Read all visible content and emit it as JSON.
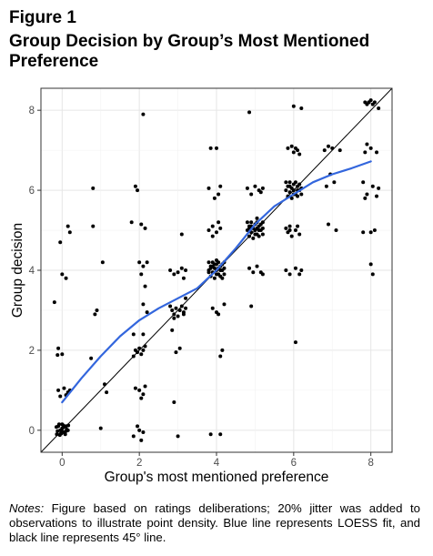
{
  "figure": {
    "label": "Figure 1",
    "title": "Group Decision by Group’s Most Mentioned Preference"
  },
  "notes": {
    "lead": "Notes:",
    "text": " Figure based on ratings deliberations; 20% jitter was added to observations to illustrate point density. Blue line represents LOESS fit, and black line represents 45° line."
  },
  "colors": {
    "loess": "#3366dd",
    "diagonal": "#000000",
    "points": "#000000",
    "grid": "#e6e6e6",
    "panel_border": "#333333"
  },
  "chart_data": {
    "type": "scatter",
    "xlabel": "Group's most mentioned preference",
    "ylabel": "Group decision",
    "xlim": [
      -0.55,
      8.55
    ],
    "ylim": [
      -0.55,
      8.55
    ],
    "xticks": [
      0,
      2,
      4,
      6,
      8
    ],
    "yticks": [
      0,
      2,
      4,
      6,
      8
    ],
    "grid": true,
    "series": [
      {
        "kind": "points",
        "points": [
          [
            -0.1,
            0.1
          ],
          [
            -0.05,
            0.0
          ],
          [
            0.0,
            0.05
          ],
          [
            0.05,
            -0.05
          ],
          [
            0.1,
            0.1
          ],
          [
            -0.12,
            -0.02
          ],
          [
            0.12,
            0.02
          ],
          [
            0.0,
            0.15
          ],
          [
            -0.06,
            -0.12
          ],
          [
            0.08,
            -0.1
          ],
          [
            0.15,
            0.0
          ],
          [
            -0.15,
            0.08
          ],
          [
            0.03,
            0.12
          ],
          [
            -0.02,
            -0.08
          ],
          [
            0.1,
            -0.02
          ],
          [
            -0.08,
            0.15
          ],
          [
            0.05,
            0.08
          ],
          [
            -0.14,
            -0.1
          ],
          [
            0.16,
            0.12
          ],
          [
            0.0,
            -0.03
          ],
          [
            -0.1,
            1.0
          ],
          [
            0.05,
            1.05
          ],
          [
            0.15,
            0.95
          ],
          [
            0.2,
            1.0
          ],
          [
            -0.05,
            0.85
          ],
          [
            -0.2,
            3.2
          ],
          [
            0.0,
            3.9
          ],
          [
            -0.1,
            2.05
          ],
          [
            0.0,
            1.9
          ],
          [
            -0.12,
            1.88
          ],
          [
            0.1,
            3.8
          ],
          [
            0.15,
            5.1
          ],
          [
            0.2,
            4.95
          ],
          [
            -0.05,
            4.7
          ],
          [
            0.1,
            0.88
          ],
          [
            0.8,
            6.05
          ],
          [
            0.8,
            5.1
          ],
          [
            0.9,
            3.0
          ],
          [
            0.85,
            2.9
          ],
          [
            0.75,
            1.8
          ],
          [
            1.05,
            4.2
          ],
          [
            1.1,
            1.15
          ],
          [
            1.15,
            0.95
          ],
          [
            1.0,
            0.05
          ],
          [
            1.85,
            1.85
          ],
          [
            1.9,
            2.0
          ],
          [
            1.95,
            1.95
          ],
          [
            2.0,
            2.05
          ],
          [
            2.05,
            1.9
          ],
          [
            2.1,
            2.0
          ],
          [
            2.15,
            2.1
          ],
          [
            1.9,
            1.05
          ],
          [
            2.0,
            1.0
          ],
          [
            2.05,
            0.8
          ],
          [
            2.1,
            0.9
          ],
          [
            2.15,
            1.1
          ],
          [
            1.85,
            -0.15
          ],
          [
            2.0,
            0.0
          ],
          [
            2.05,
            -0.25
          ],
          [
            1.95,
            0.1
          ],
          [
            2.1,
            -0.05
          ],
          [
            1.8,
            5.2
          ],
          [
            1.9,
            6.1
          ],
          [
            1.95,
            6.0
          ],
          [
            2.05,
            5.15
          ],
          [
            2.15,
            5.05
          ],
          [
            2.0,
            4.2
          ],
          [
            2.1,
            4.1
          ],
          [
            2.2,
            4.2
          ],
          [
            2.05,
            3.9
          ],
          [
            2.15,
            3.6
          ],
          [
            2.1,
            3.15
          ],
          [
            2.1,
            2.4
          ],
          [
            2.1,
            7.9
          ],
          [
            2.2,
            2.95
          ],
          [
            1.85,
            2.4
          ],
          [
            2.8,
            3.1
          ],
          [
            2.85,
            3.0
          ],
          [
            2.9,
            2.9
          ],
          [
            2.95,
            3.05
          ],
          [
            3.0,
            2.85
          ],
          [
            3.05,
            3.0
          ],
          [
            3.1,
            3.1
          ],
          [
            3.15,
            2.95
          ],
          [
            2.9,
            2.8
          ],
          [
            3.2,
            3.05
          ],
          [
            2.8,
            4.0
          ],
          [
            2.9,
            3.9
          ],
          [
            3.0,
            3.95
          ],
          [
            3.1,
            4.05
          ],
          [
            3.2,
            4.0
          ],
          [
            3.15,
            3.8
          ],
          [
            3.1,
            4.9
          ],
          [
            2.95,
            1.95
          ],
          [
            3.05,
            2.05
          ],
          [
            2.9,
            0.7
          ],
          [
            3.0,
            -0.15
          ],
          [
            2.85,
            2.5
          ],
          [
            3.2,
            3.3
          ],
          [
            3.15,
            2.9
          ],
          [
            3.8,
            4.0
          ],
          [
            3.85,
            4.1
          ],
          [
            3.9,
            3.95
          ],
          [
            3.95,
            4.05
          ],
          [
            4.0,
            4.15
          ],
          [
            4.05,
            3.9
          ],
          [
            4.1,
            4.1
          ],
          [
            4.15,
            4.0
          ],
          [
            4.2,
            4.05
          ],
          [
            3.85,
            3.85
          ],
          [
            3.9,
            4.2
          ],
          [
            3.95,
            3.8
          ],
          [
            4.0,
            4.0
          ],
          [
            4.05,
            4.2
          ],
          [
            4.1,
            3.85
          ],
          [
            4.15,
            4.15
          ],
          [
            4.2,
            3.9
          ],
          [
            3.8,
            4.2
          ],
          [
            3.9,
            4.1
          ],
          [
            4.0,
            3.9
          ],
          [
            4.1,
            4.0
          ],
          [
            4.2,
            4.2
          ],
          [
            3.85,
            4.05
          ],
          [
            4.05,
            4.05
          ],
          [
            4.15,
            3.8
          ],
          [
            3.95,
            4.15
          ],
          [
            3.8,
            3.95
          ],
          [
            4.0,
            4.25
          ],
          [
            3.8,
            5.0
          ],
          [
            3.9,
            5.1
          ],
          [
            4.0,
            4.95
          ],
          [
            4.1,
            5.05
          ],
          [
            3.9,
            4.85
          ],
          [
            4.05,
            5.2
          ],
          [
            3.8,
            6.05
          ],
          [
            3.95,
            5.8
          ],
          [
            4.05,
            5.9
          ],
          [
            4.1,
            6.1
          ],
          [
            3.85,
            7.05
          ],
          [
            4.0,
            7.05
          ],
          [
            3.9,
            3.05
          ],
          [
            4.0,
            2.95
          ],
          [
            4.05,
            2.9
          ],
          [
            4.15,
            2.0
          ],
          [
            4.1,
            1.85
          ],
          [
            4.2,
            3.15
          ],
          [
            3.85,
            -0.1
          ],
          [
            4.1,
            -0.1
          ],
          [
            4.8,
            5.0
          ],
          [
            4.85,
            5.1
          ],
          [
            4.9,
            4.95
          ],
          [
            4.95,
            5.05
          ],
          [
            5.0,
            5.15
          ],
          [
            5.05,
            4.9
          ],
          [
            5.1,
            5.1
          ],
          [
            5.15,
            5.0
          ],
          [
            5.2,
            5.05
          ],
          [
            4.85,
            4.85
          ],
          [
            4.9,
            5.2
          ],
          [
            4.95,
            4.8
          ],
          [
            5.0,
            5.0
          ],
          [
            5.05,
            5.2
          ],
          [
            5.1,
            4.85
          ],
          [
            5.15,
            5.15
          ],
          [
            5.2,
            4.9
          ],
          [
            4.8,
            5.2
          ],
          [
            4.9,
            5.1
          ],
          [
            5.0,
            4.9
          ],
          [
            5.1,
            5.0
          ],
          [
            5.2,
            5.2
          ],
          [
            4.85,
            5.05
          ],
          [
            5.05,
            5.05
          ],
          [
            4.8,
            6.05
          ],
          [
            4.9,
            5.9
          ],
          [
            5.0,
            6.1
          ],
          [
            5.1,
            6.0
          ],
          [
            5.15,
            5.95
          ],
          [
            5.2,
            6.05
          ],
          [
            4.85,
            4.05
          ],
          [
            4.95,
            3.95
          ],
          [
            5.05,
            4.1
          ],
          [
            5.15,
            3.95
          ],
          [
            5.2,
            3.9
          ],
          [
            4.9,
            3.1
          ],
          [
            4.85,
            7.95
          ],
          [
            5.05,
            5.3
          ],
          [
            5.8,
            6.0
          ],
          [
            5.85,
            6.1
          ],
          [
            5.9,
            5.95
          ],
          [
            5.95,
            6.05
          ],
          [
            6.0,
            6.15
          ],
          [
            6.05,
            5.9
          ],
          [
            6.1,
            6.1
          ],
          [
            6.15,
            6.0
          ],
          [
            6.2,
            6.05
          ],
          [
            5.85,
            5.85
          ],
          [
            5.9,
            6.2
          ],
          [
            5.95,
            5.8
          ],
          [
            6.0,
            6.0
          ],
          [
            6.05,
            6.2
          ],
          [
            6.1,
            5.85
          ],
          [
            6.15,
            6.15
          ],
          [
            6.2,
            5.9
          ],
          [
            5.8,
            6.2
          ],
          [
            5.9,
            6.1
          ],
          [
            6.0,
            5.9
          ],
          [
            6.1,
            6.0
          ],
          [
            5.8,
            5.05
          ],
          [
            5.85,
            4.95
          ],
          [
            5.9,
            5.1
          ],
          [
            5.95,
            4.85
          ],
          [
            6.05,
            5.0
          ],
          [
            6.1,
            5.1
          ],
          [
            6.15,
            4.9
          ],
          [
            5.85,
            7.05
          ],
          [
            5.95,
            7.1
          ],
          [
            6.0,
            6.95
          ],
          [
            6.1,
            7.0
          ],
          [
            6.15,
            6.9
          ],
          [
            5.8,
            4.0
          ],
          [
            5.9,
            3.9
          ],
          [
            6.05,
            4.05
          ],
          [
            6.2,
            4.0
          ],
          [
            6.15,
            3.9
          ],
          [
            6.0,
            8.1
          ],
          [
            6.2,
            8.05
          ],
          [
            6.05,
            2.2
          ],
          [
            6.05,
            7.05
          ],
          [
            5.9,
            5.0
          ],
          [
            6.8,
            7.0
          ],
          [
            6.9,
            7.1
          ],
          [
            7.0,
            7.05
          ],
          [
            7.05,
            6.2
          ],
          [
            7.1,
            5.0
          ],
          [
            7.2,
            7.0
          ],
          [
            6.95,
            6.4
          ],
          [
            6.9,
            5.15
          ],
          [
            6.85,
            6.1
          ],
          [
            7.85,
            8.2
          ],
          [
            7.9,
            8.15
          ],
          [
            7.95,
            8.2
          ],
          [
            8.0,
            8.25
          ],
          [
            8.05,
            8.15
          ],
          [
            8.1,
            8.2
          ],
          [
            8.2,
            8.05
          ],
          [
            8.15,
            6.95
          ],
          [
            7.9,
            7.15
          ],
          [
            7.85,
            6.95
          ],
          [
            8.0,
            7.05
          ],
          [
            7.8,
            6.2
          ],
          [
            7.9,
            5.9
          ],
          [
            8.05,
            6.1
          ],
          [
            8.15,
            5.85
          ],
          [
            7.85,
            5.8
          ],
          [
            8.0,
            4.95
          ],
          [
            7.8,
            4.95
          ],
          [
            8.1,
            5.0
          ],
          [
            7.95,
            8.2
          ],
          [
            8.0,
            4.15
          ],
          [
            8.05,
            3.9
          ],
          [
            8.2,
            6.05
          ]
        ]
      },
      {
        "kind": "loess",
        "line": [
          [
            0.0,
            0.7
          ],
          [
            0.5,
            1.3
          ],
          [
            1.0,
            1.85
          ],
          [
            1.5,
            2.35
          ],
          [
            2.0,
            2.75
          ],
          [
            2.5,
            3.05
          ],
          [
            3.0,
            3.3
          ],
          [
            3.5,
            3.55
          ],
          [
            4.0,
            4.0
          ],
          [
            4.5,
            4.55
          ],
          [
            5.0,
            5.15
          ],
          [
            5.5,
            5.6
          ],
          [
            6.0,
            5.9
          ],
          [
            6.5,
            6.2
          ],
          [
            7.0,
            6.4
          ],
          [
            7.5,
            6.55
          ],
          [
            8.0,
            6.72
          ]
        ]
      }
    ]
  }
}
